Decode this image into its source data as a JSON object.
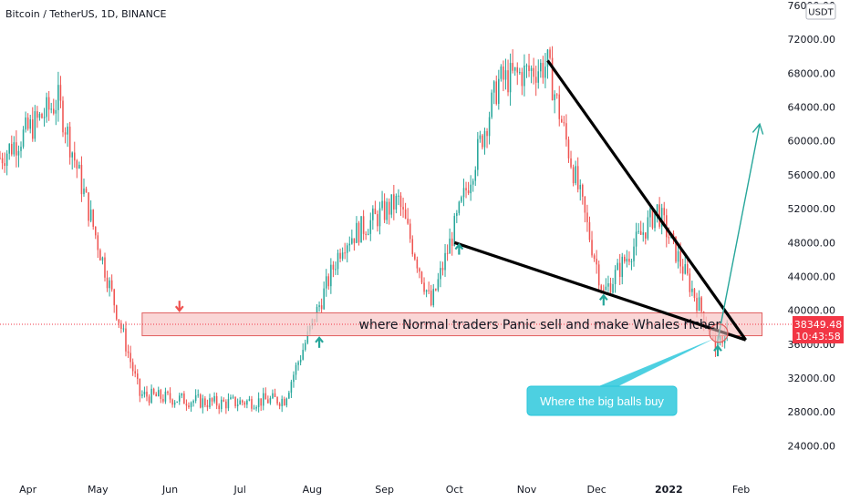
{
  "chart_data": {
    "type": "candlestick",
    "title": "Bitcoin / TetherUS, 1D, BINANCE",
    "currency_badge": "USDT",
    "y_axis": {
      "range": [
        22000,
        76000
      ],
      "scale": "linear",
      "position": "right",
      "ticks": [
        "76000.00",
        "72000.00",
        "68000.00",
        "64000.00",
        "60000.00",
        "56000.00",
        "52000.00",
        "48000.00",
        "44000.00",
        "40000.00",
        "36000.00",
        "32000.00",
        "28000.00",
        "24000.00"
      ],
      "tick_values": [
        76000,
        72000,
        68000,
        64000,
        60000,
        56000,
        52000,
        48000,
        44000,
        40000,
        36000,
        32000,
        28000,
        24000
      ]
    },
    "x_axis": {
      "ticks": [
        "Apr",
        "May",
        "Jun",
        "Jul",
        "Aug",
        "Sep",
        "Oct",
        "Nov",
        "Dec",
        "2022",
        "Feb"
      ],
      "tick_dates": [
        "2021-04-01",
        "2021-05-01",
        "2021-06-01",
        "2021-07-01",
        "2021-08-01",
        "2021-09-01",
        "2021-10-01",
        "2021-11-01",
        "2021-12-01",
        "2022-01-01",
        "2022-02-01"
      ],
      "range": [
        "2021-03-20",
        "2022-02-18"
      ]
    },
    "grid": false,
    "current_price": {
      "label": "38349.48",
      "countdown": "10:43:58",
      "value": 38349.48,
      "color": "#f23645"
    },
    "colors": {
      "up": "#26a69a",
      "down": "#ef5350",
      "trendline": "#000000",
      "zone_fill": "#f8c8c8",
      "zone_border": "#e06060",
      "callout": "#4dd0e1",
      "projection": "#26a69a"
    },
    "key_prices": [
      {
        "date": "2021-03-20",
        "price": 58000
      },
      {
        "date": "2021-04-14",
        "price": 64800
      },
      {
        "date": "2021-05-19",
        "price": 30000
      },
      {
        "date": "2021-06-22",
        "price": 29000
      },
      {
        "date": "2021-07-20",
        "price": 29500
      },
      {
        "date": "2021-08-14",
        "price": 48000
      },
      {
        "date": "2021-09-07",
        "price": 52900
      },
      {
        "date": "2021-09-21",
        "price": 40600
      },
      {
        "date": "2021-10-20",
        "price": 67000
      },
      {
        "date": "2021-11-10",
        "price": 69000
      },
      {
        "date": "2021-12-04",
        "price": 42000
      },
      {
        "date": "2021-12-27",
        "price": 51900
      },
      {
        "date": "2022-01-22",
        "price": 35500
      },
      {
        "date": "2022-01-26",
        "price": 38349
      }
    ],
    "annotations": {
      "zone_label": "where Normal traders Panic sell and make Whales richer",
      "callout_label": "Where the big balls buy",
      "zone_range": [
        37000,
        39700
      ],
      "trendlines": [
        {
          "from": {
            "date": "2021-11-10",
            "price": 69500
          },
          "to": {
            "date": "2022-02-03",
            "price": 36500
          }
        },
        {
          "from": {
            "date": "2021-10-01",
            "price": 48000
          },
          "to": {
            "date": "2022-02-03",
            "price": 36500
          }
        }
      ],
      "projection_target": {
        "date": "2022-02-09",
        "price": 62000
      }
    }
  }
}
